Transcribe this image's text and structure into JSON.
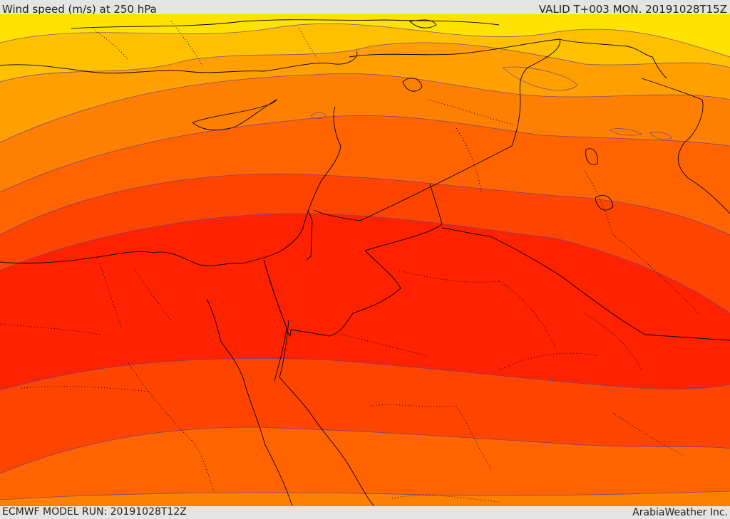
{
  "header": {
    "title": "Wind speed (m/s) at 250 hPa",
    "valid_time": "VALID T+003 MON. 20191028T15Z"
  },
  "footer": {
    "model_run": "ECMWF MODEL RUN: 20191028T12Z",
    "credit": "ArabiaWeather Inc."
  },
  "map": {
    "variable": "wind speed",
    "level_hpa": 250,
    "units": "m/s",
    "colors": {
      "band_1": "#ffe200",
      "band_2": "#ffc000",
      "band_3": "#ffa000",
      "band_4": "#ff8000",
      "band_5": "#ff6400",
      "band_6": "#ff4400",
      "band_7": "#ff2200",
      "band_8": "#ff1a00",
      "contour": "#5a3fa0",
      "border": "#000000"
    }
  }
}
